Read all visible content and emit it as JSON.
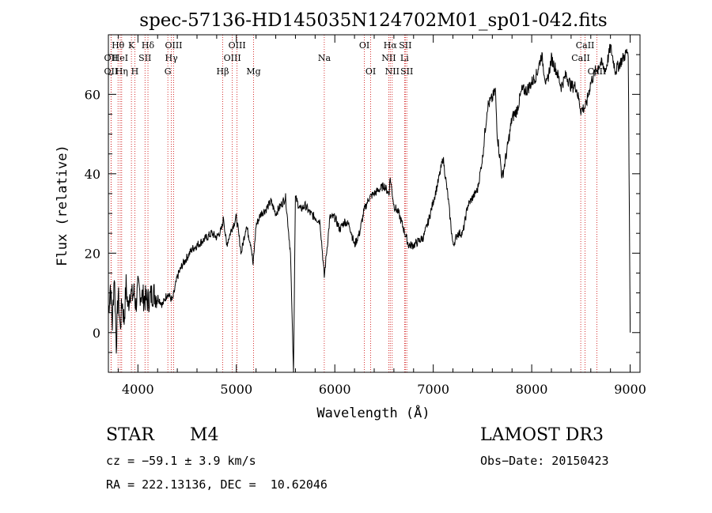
{
  "chart_data": {
    "type": "line",
    "title": "spec-57136-HD145035N124702M01_sp01-042.fits",
    "xlabel": "Wavelength (Å)",
    "ylabel": "Flux (relative)",
    "xlim": [
      3700,
      9100
    ],
    "ylim": [
      -10,
      75
    ],
    "x_ticks": [
      4000,
      5000,
      6000,
      7000,
      8000,
      9000
    ],
    "y_ticks": [
      0,
      20,
      40,
      60
    ],
    "grid": false,
    "line_color": "#000000",
    "marker_color": "#cc0000",
    "series": [
      {
        "x": [
          3700,
          3720,
          3740,
          3760,
          3780,
          3800,
          3820,
          3840,
          3860,
          3880,
          3900,
          3920,
          3940,
          3960,
          3980,
          4000,
          4050,
          4100,
          4150,
          4200,
          4250,
          4300,
          4350,
          4400,
          4450,
          4500,
          4550,
          4600,
          4650,
          4700,
          4750,
          4800,
          4850,
          4870,
          4900,
          4950,
          5000,
          5050,
          5100,
          5150,
          5170,
          5200,
          5250,
          5300,
          5350,
          5400,
          5450,
          5500,
          5550,
          5580,
          5600,
          5650,
          5700,
          5750,
          5800,
          5850,
          5893,
          5950,
          6000,
          6050,
          6100,
          6150,
          6200,
          6250,
          6300,
          6350,
          6400,
          6450,
          6500,
          6550,
          6563,
          6600,
          6650,
          6700,
          6750,
          6800,
          6850,
          6900,
          6950,
          7000,
          7050,
          7100,
          7150,
          7200,
          7250,
          7300,
          7350,
          7400,
          7450,
          7500,
          7550,
          7600,
          7630,
          7650,
          7700,
          7750,
          7800,
          7850,
          7900,
          7950,
          8000,
          8050,
          8100,
          8150,
          8200,
          8250,
          8300,
          8350,
          8400,
          8450,
          8500,
          8550,
          8600,
          8650,
          8700,
          8750,
          8800,
          8850,
          8900,
          8950,
          8980,
          9000
        ],
        "y": [
          5,
          12,
          2,
          15,
          -3,
          10,
          1,
          8,
          3,
          12,
          6,
          11,
          9,
          10,
          7,
          11,
          9,
          8,
          10,
          9,
          7,
          10,
          8,
          14,
          17,
          19,
          21,
          22,
          23,
          24,
          25,
          24,
          26,
          29,
          22,
          26,
          29,
          20,
          27,
          22,
          17,
          27,
          30,
          31,
          33,
          30,
          32,
          34,
          20,
          -10,
          34,
          31,
          32,
          30,
          29,
          28,
          14,
          29,
          29,
          26,
          28,
          27,
          22,
          25,
          31,
          34,
          35,
          36,
          37,
          35,
          39,
          32,
          30,
          26,
          22,
          22,
          23,
          24,
          28,
          33,
          38,
          44,
          34,
          22,
          25,
          25,
          32,
          34,
          36,
          44,
          57,
          59,
          61,
          50,
          39,
          46,
          54,
          56,
          61,
          61,
          63,
          65,
          70,
          62,
          69,
          66,
          62,
          65,
          62,
          62,
          56,
          57,
          63,
          66,
          68,
          66,
          72,
          66,
          68,
          70,
          71,
          0
        ]
      }
    ],
    "line_markers": [
      {
        "label": "OII",
        "x": 3727,
        "row": 2
      },
      {
        "label": "Hθ",
        "x": 3798,
        "row": 1
      },
      {
        "label": "OII",
        "x": 3727,
        "row": 3
      },
      {
        "label": "HeI",
        "x": 3820,
        "row": 2
      },
      {
        "label": "Hη",
        "x": 3835,
        "row": 3
      },
      {
        "label": "K",
        "x": 3934,
        "row": 1
      },
      {
        "label": "SII",
        "x": 4072,
        "row": 2
      },
      {
        "label": "H",
        "x": 3969,
        "row": 3
      },
      {
        "label": "Hδ",
        "x": 4102,
        "row": 1
      },
      {
        "label": "OIII",
        "x": 4363,
        "row": 1
      },
      {
        "label": "Hγ",
        "x": 4340,
        "row": 2
      },
      {
        "label": "G",
        "x": 4304,
        "row": 3
      },
      {
        "label": "OIII",
        "x": 5007,
        "row": 1
      },
      {
        "label": "OIII",
        "x": 4959,
        "row": 2
      },
      {
        "label": "Hβ",
        "x": 4861,
        "row": 3
      },
      {
        "label": "Mg",
        "x": 5175,
        "row": 3
      },
      {
        "label": "Na",
        "x": 5893,
        "row": 2
      },
      {
        "label": "OI",
        "x": 6300,
        "row": 1
      },
      {
        "label": "OI",
        "x": 6364,
        "row": 3
      },
      {
        "label": "Hα",
        "x": 6563,
        "row": 1
      },
      {
        "label": "NII",
        "x": 6548,
        "row": 2
      },
      {
        "label": "NII",
        "x": 6583,
        "row": 3
      },
      {
        "label": "SII",
        "x": 6716,
        "row": 1
      },
      {
        "label": "Li",
        "x": 6708,
        "row": 2
      },
      {
        "label": "SII",
        "x": 6731,
        "row": 3
      },
      {
        "label": "CaII",
        "x": 8542,
        "row": 1
      },
      {
        "label": "CaII",
        "x": 8498,
        "row": 2
      },
      {
        "label": "CaII",
        "x": 8662,
        "row": 3
      }
    ]
  },
  "info": {
    "class_label": "STAR",
    "subclass": "M4",
    "survey": "LAMOST DR3",
    "cz": "cz = −59.1 ± 3.9 km/s",
    "obs_date": "Obs−Date: 20150423",
    "coords": "RA = 222.13136, DEC =  10.62046"
  }
}
